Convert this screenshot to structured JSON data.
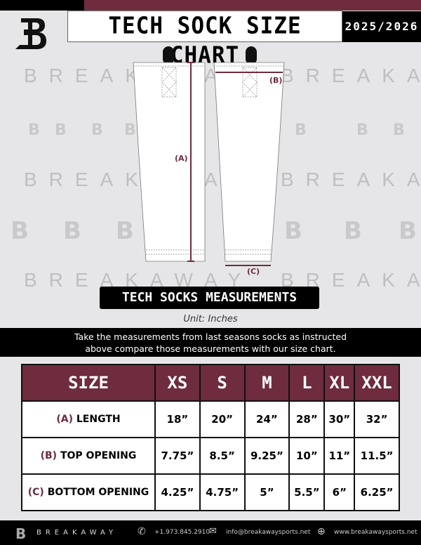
{
  "header": {
    "title": "TECH SOCK SIZE CHART",
    "season": "2025/2026"
  },
  "watermark": "BREAKAWAY",
  "diagram": {
    "length_label": "(A)",
    "top_label": "(B)",
    "bottom_label": "(C)"
  },
  "measurements_title": "TECH SOCKS MEASUREMENTS",
  "unit": "Unit: Inches",
  "instructions": "Take the measurements from last seasons socks as instructed above compare those measurements  with our size chart.",
  "table": {
    "header": "SIZE",
    "sizes": [
      "XS",
      "S",
      "M",
      "L",
      "XL",
      "XXL"
    ],
    "rows": [
      {
        "tag": "(A)",
        "label": "LENGTH",
        "values": [
          "18”",
          "20”",
          "24”",
          "28”",
          "30”",
          "32”"
        ]
      },
      {
        "tag": "(B)",
        "label": "TOP OPENING",
        "values": [
          "7.75”",
          "8.5”",
          "9.25”",
          "10”",
          "11”",
          "11.5”"
        ]
      },
      {
        "tag": "(C)",
        "label": "BOTTOM OPENING",
        "values": [
          "4.25”",
          "4.75”",
          "5”",
          "5.5”",
          "6”",
          "6.25”"
        ]
      }
    ]
  },
  "footer": {
    "brand": "BREAKAWAY",
    "phone": "+1.973.845.2910",
    "email": "info@breakawaysports.net",
    "website": "www.breakawaysports.net"
  },
  "colors": {
    "maroon": "#6e2c3e",
    "black": "#000000",
    "background": "#e6e6e8"
  }
}
